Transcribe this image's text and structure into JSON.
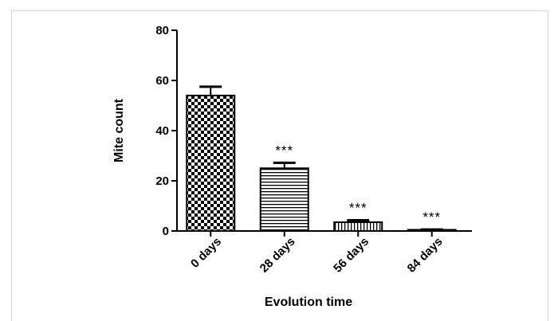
{
  "chart_data": {
    "type": "bar",
    "title": "",
    "xlabel": "Evolution time",
    "ylabel": "Mite count",
    "ylim": [
      0,
      80
    ],
    "yticks": [
      "0",
      "20",
      "40",
      "60",
      "80"
    ],
    "categories": [
      "0 days",
      "28 days",
      "56 days",
      "84 days"
    ],
    "values": [
      54,
      25,
      3.5,
      0.3
    ],
    "errors": [
      3.5,
      2.2,
      0.8,
      0.3
    ],
    "annotations": [
      "",
      "***",
      "***",
      "***"
    ],
    "patterns": [
      "checkerboard",
      "horizontal-lines",
      "vertical-lines",
      "dense-vertical-lines"
    ],
    "grid": false,
    "legend": "none"
  }
}
